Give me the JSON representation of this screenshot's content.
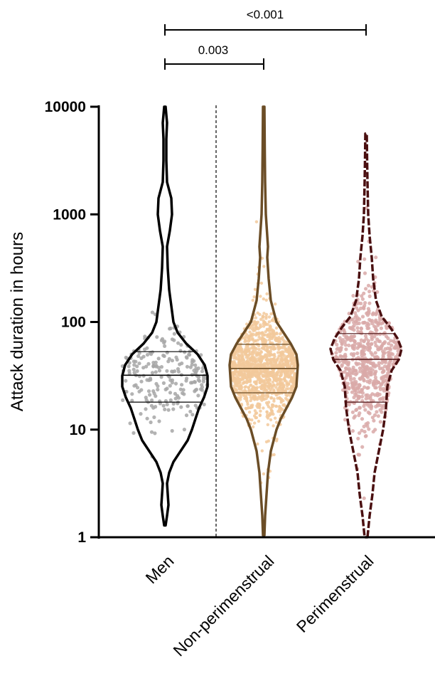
{
  "chart_data": {
    "type": "violin",
    "ylabel": "Attack duration in hours",
    "yscale": "log",
    "ylim": [
      1,
      10000
    ],
    "yticks": [
      {
        "value": 1,
        "label": "1"
      },
      {
        "value": 10,
        "label": "10"
      },
      {
        "value": 100,
        "label": "100"
      },
      {
        "value": 1000,
        "label": "1000"
      },
      {
        "value": 10000,
        "label": "10000"
      }
    ],
    "categories": [
      "Men",
      "Non-perimenstrual",
      "Perimenstrual"
    ],
    "groups": [
      {
        "category": "Men",
        "outline_color": "#000000",
        "point_color": "#a6a6a6",
        "median": 32,
        "q1": 18,
        "q3": 53,
        "min": 1.3,
        "max": 10000,
        "n_points_approx": 230
      },
      {
        "category": "Non-perimenstrual",
        "outline_color": "#6b4d26",
        "point_color": "#f2c99b",
        "median": 37,
        "q1": 22,
        "q3": 62,
        "min": 1.05,
        "max": 10000,
        "n_points_approx": 1400
      },
      {
        "category": "Perimenstrual",
        "outline_color": "#4a0f10",
        "point_color": "#d9a9a8",
        "median": 45,
        "q1": 18,
        "q3": 78,
        "min": 1.0,
        "max": 5500,
        "n_points_approx": 650
      }
    ],
    "comparisons": [
      {
        "from": "Men",
        "to": "Perimenstrual",
        "label": "<0.001"
      },
      {
        "from": "Men",
        "to": "Non-perimenstrual",
        "label": "0.003"
      }
    ],
    "separator": "dashed vertical line between Men and Non-perimenstrual",
    "grid": false,
    "legend": "none"
  }
}
